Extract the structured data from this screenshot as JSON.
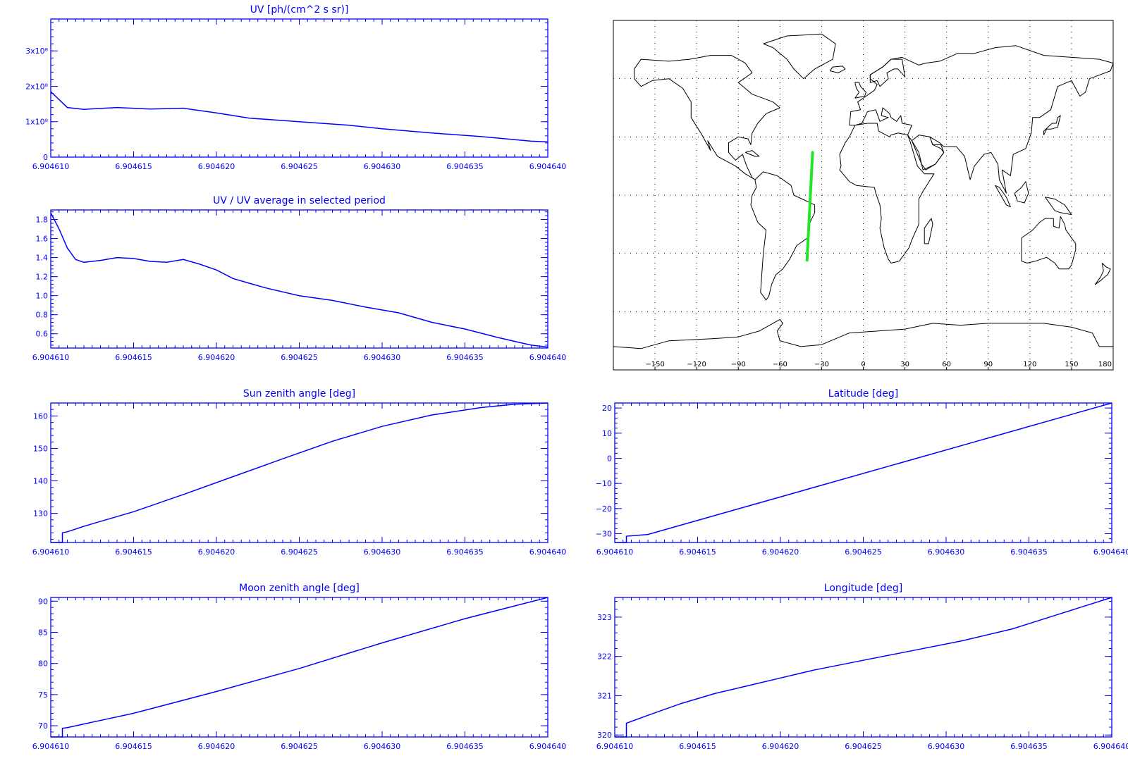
{
  "chart_data": [
    {
      "id": "uv",
      "type": "line",
      "title": "UV [ph/(cm^2 s sr)]",
      "xlim": [
        6.90461,
        6.90464
      ],
      "x_ticks": [
        "6.904610",
        "6.904615",
        "6.904620",
        "6.904625",
        "6.904630",
        "6.904635",
        "6.904640"
      ],
      "ylim": [
        0,
        390000000
      ],
      "y_tick_values": [
        0,
        100000000,
        200000000,
        300000000
      ],
      "y_ticks": [
        "0",
        "1x10⁸",
        "2x10⁸",
        "3x10⁸"
      ],
      "series": [
        {
          "x": [
            6.90461,
            6.904611,
            6.904612,
            6.904614,
            6.904616,
            6.904618,
            6.90462,
            6.904622,
            6.904625,
            6.904628,
            6.90463,
            6.904633,
            6.904636,
            6.904639,
            6.90464
          ],
          "y": [
            185000000,
            140000000,
            135000000,
            140000000,
            136000000,
            138000000,
            125000000,
            110000000,
            100000000,
            90000000,
            80000000,
            68000000,
            58000000,
            45000000,
            43000000
          ]
        }
      ]
    },
    {
      "id": "uv-ratio",
      "type": "line",
      "title": "UV / UV average in selected period",
      "xlim": [
        6.90461,
        6.90464
      ],
      "x_ticks": [
        "6.904610",
        "6.904615",
        "6.904620",
        "6.904625",
        "6.904630",
        "6.904635",
        "6.904640"
      ],
      "ylim": [
        0.45,
        1.9
      ],
      "y_tick_values": [
        0.6,
        0.8,
        1.0,
        1.2,
        1.4,
        1.6,
        1.8
      ],
      "y_ticks": [
        "0.6",
        "0.8",
        "1.0",
        "1.2",
        "1.4",
        "1.6",
        "1.8"
      ],
      "series": [
        {
          "x": [
            6.90461,
            6.9046105,
            6.904611,
            6.9046115,
            6.904612,
            6.904613,
            6.904614,
            6.904615,
            6.904616,
            6.904617,
            6.904618,
            6.904619,
            6.90462,
            6.904621,
            6.904622,
            6.904623,
            6.904625,
            6.904627,
            6.904629,
            6.904631,
            6.904633,
            6.904635,
            6.904637,
            6.904639,
            6.90464
          ],
          "y": [
            1.87,
            1.7,
            1.5,
            1.38,
            1.35,
            1.37,
            1.4,
            1.39,
            1.36,
            1.35,
            1.38,
            1.33,
            1.27,
            1.18,
            1.13,
            1.08,
            1.0,
            0.95,
            0.88,
            0.82,
            0.72,
            0.65,
            0.56,
            0.48,
            0.46
          ]
        }
      ]
    },
    {
      "id": "sun-zenith",
      "type": "line",
      "title": "Sun zenith angle [deg]",
      "xlim": [
        6.90461,
        6.90464
      ],
      "x_ticks": [
        "6.904610",
        "6.904615",
        "6.904620",
        "6.904625",
        "6.904630",
        "6.904635",
        "6.904640"
      ],
      "ylim": [
        121,
        164
      ],
      "y_tick_values": [
        130,
        140,
        150,
        160
      ],
      "y_ticks": [
        "130",
        "140",
        "150",
        "160"
      ],
      "series": [
        {
          "x": [
            6.90461,
            6.9046107,
            6.9046107,
            6.904611,
            6.904612,
            6.904615,
            6.904618,
            6.904621,
            6.904624,
            6.904627,
            6.90463,
            6.904633,
            6.904636,
            6.904638,
            6.90464
          ],
          "y": [
            121,
            121,
            124,
            124.3,
            126,
            130.5,
            135.8,
            141.3,
            146.8,
            152.2,
            156.8,
            160.3,
            162.6,
            163.6,
            164
          ]
        }
      ]
    },
    {
      "id": "moon-zenith",
      "type": "line",
      "title": "Moon zenith angle [deg]",
      "xlim": [
        6.90461,
        6.90464
      ],
      "x_ticks": [
        "6.904610",
        "6.904615",
        "6.904620",
        "6.904625",
        "6.904630",
        "6.904635",
        "6.904640"
      ],
      "ylim": [
        68.2,
        90.6
      ],
      "y_tick_values": [
        70,
        75,
        80,
        85,
        90
      ],
      "y_ticks": [
        "70",
        "75",
        "80",
        "85",
        "90"
      ],
      "series": [
        {
          "x": [
            6.90461,
            6.9046107,
            6.9046107,
            6.904611,
            6.904615,
            6.90462,
            6.904625,
            6.90463,
            6.904635,
            6.90464
          ],
          "y": [
            68.2,
            68.2,
            69.6,
            69.7,
            72,
            75.5,
            79.2,
            83.3,
            87.2,
            90.6
          ]
        }
      ]
    },
    {
      "id": "latitude",
      "type": "line",
      "title": "Latitude [deg]",
      "xlim": [
        6.90461,
        6.90464
      ],
      "x_ticks": [
        "6.904610",
        "6.904615",
        "6.904620",
        "6.904625",
        "6.904630",
        "6.904635",
        "6.904640"
      ],
      "ylim": [
        -33.5,
        22
      ],
      "y_tick_values": [
        -30,
        -20,
        -10,
        0,
        10,
        20
      ],
      "y_ticks": [
        "−30",
        "−20",
        "−10",
        "0",
        "10",
        "20"
      ],
      "series": [
        {
          "x": [
            6.90461,
            6.9046107,
            6.9046107,
            6.904612,
            6.90464
          ],
          "y": [
            -33.5,
            -33.5,
            -31,
            -30.3,
            22
          ]
        }
      ]
    },
    {
      "id": "longitude",
      "type": "line",
      "title": "Longitude [deg]",
      "xlim": [
        6.90461,
        6.90464
      ],
      "x_ticks": [
        "6.904610",
        "6.904615",
        "6.904620",
        "6.904625",
        "6.904630",
        "6.904635",
        "6.904640"
      ],
      "ylim": [
        319.95,
        323.5
      ],
      "y_tick_values": [
        320,
        321,
        322,
        323
      ],
      "y_ticks": [
        "320",
        "321",
        "322",
        "323"
      ],
      "series": [
        {
          "x": [
            6.90461,
            6.9046107,
            6.9046107,
            6.904612,
            6.904614,
            6.904616,
            6.904618,
            6.90462,
            6.904622,
            6.904625,
            6.904628,
            6.904631,
            6.904634,
            6.904637,
            6.90464
          ],
          "y": [
            319.95,
            319.95,
            320.3,
            320.5,
            320.8,
            321.05,
            321.25,
            321.45,
            321.65,
            321.9,
            322.15,
            322.4,
            322.7,
            323.1,
            323.5
          ]
        }
      ]
    }
  ],
  "map": {
    "x_ticks": [
      "−150",
      "−120",
      "−90",
      "−60",
      "−30",
      "0",
      "30",
      "60",
      "90",
      "120",
      "150",
      "180"
    ],
    "x_tick_values": [
      -150,
      -120,
      -90,
      -60,
      -30,
      0,
      30,
      60,
      90,
      120,
      150,
      180
    ],
    "lon_range": [
      -180,
      180
    ],
    "lat_range": [
      -90,
      90
    ],
    "grid_lons": [
      -150,
      -120,
      -90,
      -60,
      -30,
      0,
      30,
      60,
      90,
      120,
      150
    ],
    "grid_lats": [
      -60,
      -30,
      0,
      30,
      60
    ],
    "track": {
      "color": "#22e622",
      "lon": [
        -40.5,
        -36.5
      ],
      "lat": [
        -33.5,
        22
      ]
    }
  }
}
